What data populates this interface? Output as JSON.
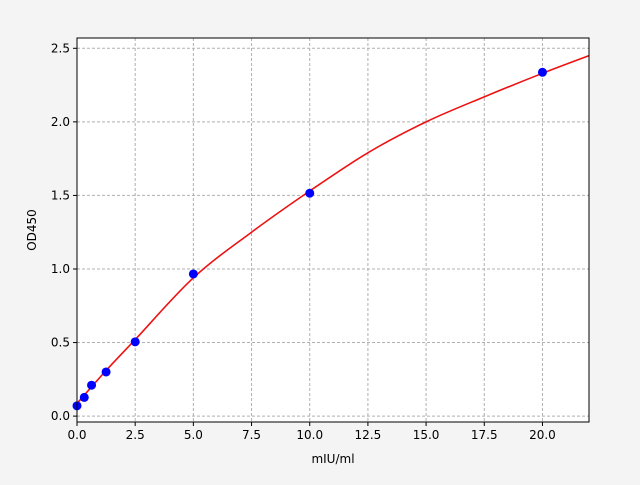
{
  "chart_data": {
    "type": "scatter",
    "title": "",
    "xlabel": "mIU/ml",
    "ylabel": "OD450",
    "xlim": [
      0,
      22
    ],
    "ylim": [
      -0.04,
      2.57
    ],
    "xticks": [
      0,
      2.5,
      5,
      7.5,
      10,
      12.5,
      15,
      17.5,
      20
    ],
    "xtick_labels": [
      "0.0",
      "2.5",
      "5.0",
      "7.5",
      "10.0",
      "12.5",
      "15.0",
      "17.5",
      "20.0"
    ],
    "yticks": [
      0,
      0.5,
      1,
      1.5,
      2,
      2.5
    ],
    "ytick_labels": [
      "0.0",
      "0.5",
      "1.0",
      "1.5",
      "2.0",
      "2.5"
    ],
    "grid": true,
    "series": [
      {
        "type": "scatter",
        "color": "#0000ff",
        "x": [
          0,
          0.3125,
          0.625,
          1.25,
          2.5,
          5,
          10,
          20
        ],
        "y": [
          0.07,
          0.127,
          0.21,
          0.3,
          0.505,
          0.966,
          1.515,
          2.337
        ]
      },
      {
        "type": "line",
        "color": "#ee1111",
        "x": [
          0,
          1.25,
          2.5,
          5,
          7.5,
          10,
          12.5,
          15,
          17.5,
          20,
          22
        ],
        "y": [
          0.086,
          0.31,
          0.52,
          0.94,
          1.25,
          1.53,
          1.79,
          2.0,
          2.17,
          2.33,
          2.45
        ]
      }
    ]
  }
}
